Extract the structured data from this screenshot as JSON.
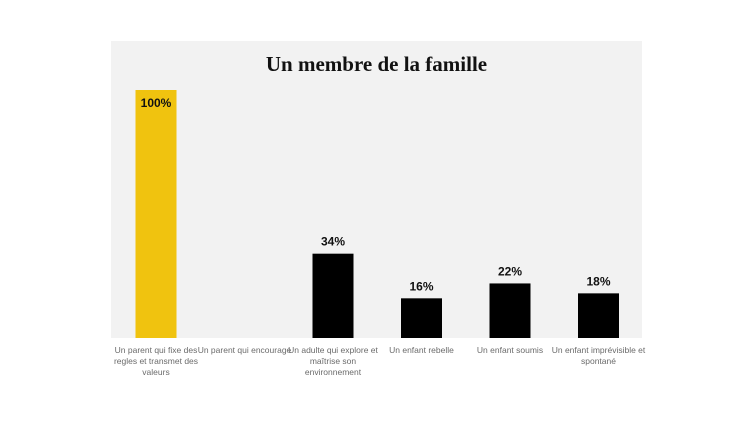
{
  "chart_data": {
    "type": "bar",
    "title": "Un membre de la famille",
    "categories": [
      "Un parent qui fixe des regles et transmet des valeurs",
      "Un parent qui encourage",
      "Un adulte qui explore et maîtrise son environnement",
      "Un enfant rebelle",
      "Un enfant soumis",
      "Un enfant imprévisible et spontané"
    ],
    "values": [
      100,
      null,
      34,
      16,
      22,
      18
    ],
    "value_labels": [
      "100%",
      "",
      "34%",
      "16%",
      "22%",
      "18%"
    ],
    "ylim": [
      0,
      100
    ],
    "grid": false,
    "legend": "none",
    "colors": [
      "#f0c30f",
      "#000000",
      "#000000",
      "#000000",
      "#000000",
      "#000000"
    ]
  }
}
